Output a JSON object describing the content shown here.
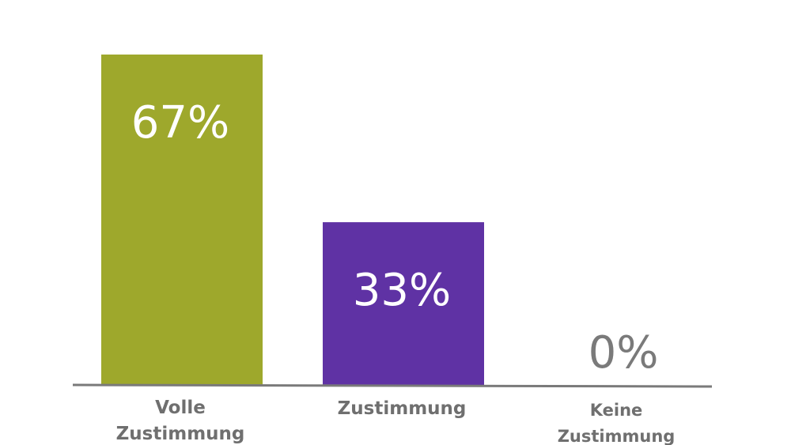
{
  "chart_data": {
    "type": "bar",
    "categories": [
      [
        "Volle",
        "Zustimmung"
      ],
      [
        "Zustimmung"
      ],
      [
        "Keine",
        "Zustimmung"
      ]
    ],
    "values": [
      67,
      33,
      0
    ],
    "value_labels": [
      "67%",
      "33%",
      "0%"
    ],
    "bar_colors": [
      "#9ea82c",
      "#5f32a4",
      "#9ea82c"
    ],
    "value_label_colors": [
      "#ffffff",
      "#ffffff",
      "#7a7a7a"
    ],
    "axis_color": "#7a7a7a",
    "ylim": [
      0,
      67
    ],
    "grid": false,
    "title": "",
    "xlabel": "",
    "ylabel": ""
  }
}
